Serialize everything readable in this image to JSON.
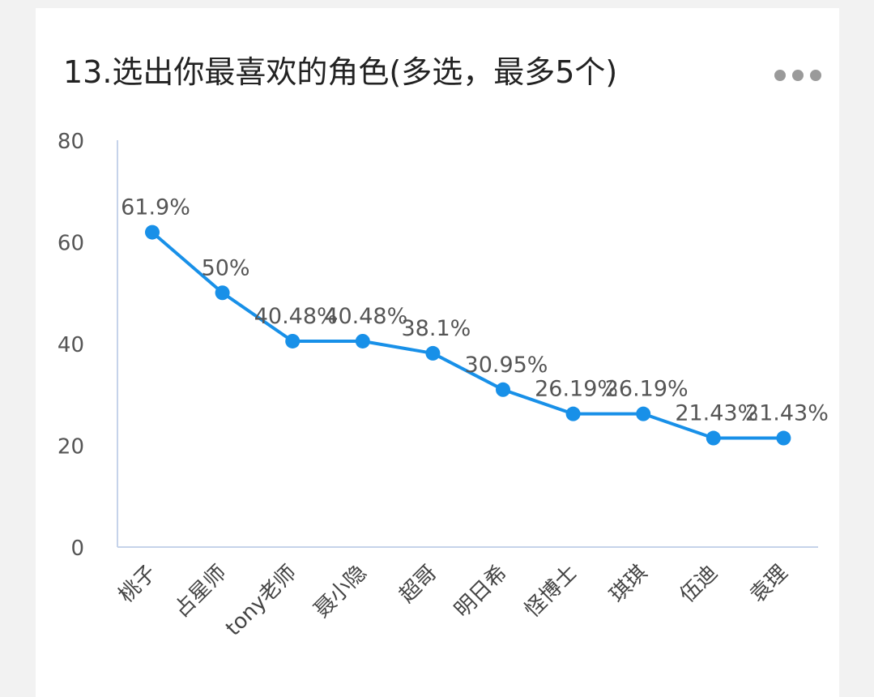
{
  "header": {
    "title": "13.选出你最喜欢的角色(多选，最多5个)"
  },
  "colors": {
    "series": "#1890e8",
    "axis": "#c6d3ea",
    "background": "#ffffff"
  },
  "icons": {
    "more": "more-horizontal-icon"
  },
  "chart_data": {
    "type": "line",
    "title": "13.选出你最喜欢的角色(多选，最多5个)",
    "xlabel": "",
    "ylabel": "",
    "ylim": [
      0,
      80
    ],
    "yticks": [
      "0",
      "20",
      "40",
      "60",
      "80"
    ],
    "grid": false,
    "legend": "none",
    "categories": [
      "桃子",
      "占星师",
      "tony老师",
      "聂小隐",
      "超哥",
      "明日希",
      "怪博士",
      "琪琪",
      "伍迪",
      "袁理"
    ],
    "series": [
      {
        "values": [
          61.9,
          50,
          40.48,
          40.48,
          38.1,
          30.95,
          26.19,
          26.19,
          21.43,
          21.43
        ],
        "labels": [
          "61.9%",
          "50%",
          "40.48%",
          "40.48%",
          "38.1%",
          "30.95%",
          "26.19%",
          "26.19%",
          "21.43%",
          "21.43%"
        ]
      }
    ]
  }
}
